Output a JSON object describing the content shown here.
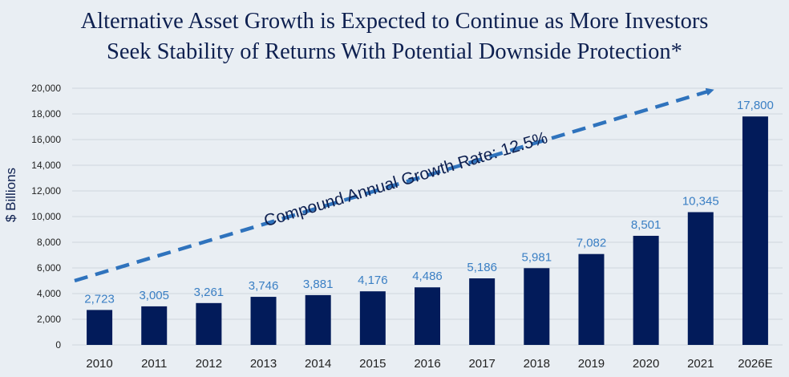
{
  "chart_data": {
    "type": "bar",
    "title": [
      "Alternative Asset Growth is Expected to Continue as More Investors",
      "Seek Stability of Returns With Potential Downside Protection*"
    ],
    "xlabel": "",
    "ylabel": "$ Billions",
    "ylim": [
      0,
      20000
    ],
    "yticks": [
      0,
      2000,
      4000,
      6000,
      8000,
      10000,
      12000,
      14000,
      16000,
      18000,
      20000
    ],
    "ytick_labels": [
      "0",
      "2,000",
      "4,000",
      "6,000",
      "8,000",
      "10,000",
      "12,000",
      "14,000",
      "16,000",
      "18,000",
      "20,000"
    ],
    "categories": [
      "2010",
      "2011",
      "2012",
      "2013",
      "2014",
      "2015",
      "2016",
      "2017",
      "2018",
      "2019",
      "2020",
      "2021",
      "2026E"
    ],
    "values": [
      2723,
      3005,
      3261,
      3746,
      3881,
      4176,
      4486,
      5186,
      5981,
      7082,
      8501,
      10345,
      17800
    ],
    "value_labels": [
      "2,723",
      "3,005",
      "3,261",
      "3,746",
      "3,881",
      "4,176",
      "4,486",
      "5,186",
      "5,981",
      "7,082",
      "8,501",
      "10,345",
      "17,800"
    ],
    "annotation": "Compound Annual Growth Rate: 12.5%",
    "grid": true,
    "colors": {
      "bar": "#021b5a",
      "value_label": "#3a7fc4",
      "arrow": "#2f73bd",
      "grid": "#cfd5dc"
    }
  }
}
